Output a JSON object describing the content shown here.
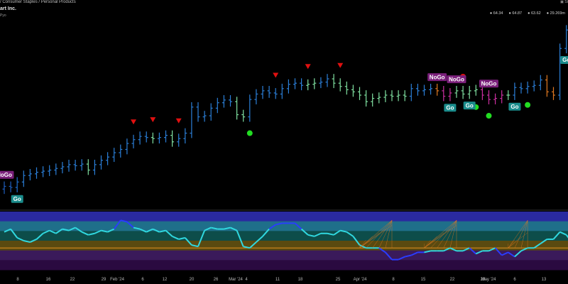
{
  "header": {
    "breadcrumb": "/ Consumer Staples / Personal Products",
    "symbol": "art Inc.",
    "timeframe": "Pyo",
    "corner": "St",
    "ohlc": [
      "64.34",
      "64.87",
      "63.62",
      "29.269m"
    ]
  },
  "chart_data": {
    "type": "bar",
    "x_tick_labels": [
      "8",
      "16",
      "22",
      "29",
      "Feb '24",
      "6",
      "12",
      "20",
      "26",
      "Mar '24",
      "4",
      "11",
      "18",
      "25",
      "Apr '24",
      "8",
      "15",
      "22",
      "29",
      "May '24",
      "6",
      "13"
    ],
    "candles": [
      {
        "c": 25.6,
        "col": "#1f5fbf"
      },
      {
        "c": 25.4,
        "col": "#1f5fbf"
      },
      {
        "c": 26.4,
        "col": "#1f6fd0"
      },
      {
        "c": 27.6,
        "col": "#2b7fd8"
      },
      {
        "c": 27.9,
        "col": "#2b7fd8"
      },
      {
        "c": 28.2,
        "col": "#2b7fd8"
      },
      {
        "c": 28.4,
        "col": "#2b7fd8"
      },
      {
        "c": 28.6,
        "col": "#2b7fd8"
      },
      {
        "c": 28.9,
        "col": "#2b7fd8"
      },
      {
        "c": 29.2,
        "col": "#2b7fd8"
      },
      {
        "c": 29.6,
        "col": "#2b7fd8"
      },
      {
        "c": 29.4,
        "col": "#2b7fd8"
      },
      {
        "c": 29.7,
        "col": "#2b7fd8"
      },
      {
        "c": 28.6,
        "col": "#7fe0a0"
      },
      {
        "c": 29.6,
        "col": "#2b7fd8"
      },
      {
        "c": 30.4,
        "col": "#2b7fd8"
      },
      {
        "c": 31.0,
        "col": "#2b7fd8"
      },
      {
        "c": 31.8,
        "col": "#2b7fd8"
      },
      {
        "c": 32.4,
        "col": "#2b7fd8"
      },
      {
        "c": 33.5,
        "col": "#2b7fd8"
      },
      {
        "c": 34.2,
        "col": "#2b7fd8"
      },
      {
        "c": 34.8,
        "col": "#2b7fd8"
      },
      {
        "c": 34.6,
        "col": "#2b7fd8"
      },
      {
        "c": 34.4,
        "col": "#7fe0a0"
      },
      {
        "c": 34.6,
        "col": "#2b7fd8"
      },
      {
        "c": 35.0,
        "col": "#2b7fd8"
      },
      {
        "c": 33.8,
        "col": "#7fe0a0"
      },
      {
        "c": 34.4,
        "col": "#2b7fd8"
      },
      {
        "c": 35.4,
        "col": "#2b7fd8"
      },
      {
        "c": 40.2,
        "col": "#2b7fd8"
      },
      {
        "c": 38.4,
        "col": "#2b7fd8"
      },
      {
        "c": 38.6,
        "col": "#2b7fd8"
      },
      {
        "c": 40.0,
        "col": "#2b7fd8"
      },
      {
        "c": 41.0,
        "col": "#2b7fd8"
      },
      {
        "c": 41.5,
        "col": "#2b7fd8"
      },
      {
        "c": 41.2,
        "col": "#2b7fd8"
      },
      {
        "c": 38.8,
        "col": "#7fe0a0"
      },
      {
        "c": 38.4,
        "col": "#7fe0a0"
      },
      {
        "c": 41.6,
        "col": "#2b7fd8"
      },
      {
        "c": 42.6,
        "col": "#2b7fd8"
      },
      {
        "c": 43.2,
        "col": "#2b7fd8"
      },
      {
        "c": 42.8,
        "col": "#2b7fd8"
      },
      {
        "c": 42.6,
        "col": "#2b7fd8"
      },
      {
        "c": 43.6,
        "col": "#2b7fd8"
      },
      {
        "c": 44.4,
        "col": "#2b7fd8"
      },
      {
        "c": 44.6,
        "col": "#2b7fd8"
      },
      {
        "c": 44.2,
        "col": "#2b7fd8"
      },
      {
        "c": 44.4,
        "col": "#7fe0a0"
      },
      {
        "c": 44.6,
        "col": "#7fe0a0"
      },
      {
        "c": 44.8,
        "col": "#2b7fd8"
      },
      {
        "c": 45.4,
        "col": "#2b7fd8"
      },
      {
        "c": 44.6,
        "col": "#7fe0a0"
      },
      {
        "c": 44.0,
        "col": "#7fe0a0"
      },
      {
        "c": 43.4,
        "col": "#7fe0a0"
      },
      {
        "c": 43.0,
        "col": "#7fe0a0"
      },
      {
        "c": 42.4,
        "col": "#7fe0a0"
      },
      {
        "c": 41.2,
        "col": "#7fe0a0"
      },
      {
        "c": 41.8,
        "col": "#7fe0a0"
      },
      {
        "c": 42.0,
        "col": "#7fe0a0"
      },
      {
        "c": 42.4,
        "col": "#7fe0a0"
      },
      {
        "c": 42.2,
        "col": "#7fe0a0"
      },
      {
        "c": 42.4,
        "col": "#7fe0a0"
      },
      {
        "c": 42.2,
        "col": "#7fe0a0"
      },
      {
        "c": 43.6,
        "col": "#2b7fd8"
      },
      {
        "c": 43.2,
        "col": "#2b7fd8"
      },
      {
        "c": 43.4,
        "col": "#2b7fd8"
      },
      {
        "c": 43.6,
        "col": "#2b7fd8"
      },
      {
        "c": 43.2,
        "col": "#e07820"
      },
      {
        "c": 42.2,
        "col": "#cc2fa0"
      },
      {
        "c": 42.8,
        "col": "#cc2fa0"
      },
      {
        "c": 43.2,
        "col": "#7fe0a0"
      },
      {
        "c": 42.6,
        "col": "#7fe0a0"
      },
      {
        "c": 43.2,
        "col": "#7fe0a0"
      },
      {
        "c": 43.4,
        "col": "#7fe0a0"
      },
      {
        "c": 42.4,
        "col": "#cc2fa0"
      },
      {
        "c": 41.6,
        "col": "#cc2fa0"
      },
      {
        "c": 41.8,
        "col": "#cc2fa0"
      },
      {
        "c": 42.4,
        "col": "#cc2fa0"
      },
      {
        "c": 42.4,
        "col": "#7fe0a0"
      },
      {
        "c": 43.8,
        "col": "#2b7fd8"
      },
      {
        "c": 43.6,
        "col": "#2b7fd8"
      },
      {
        "c": 44.0,
        "col": "#2b7fd8"
      },
      {
        "c": 44.2,
        "col": "#2b7fd8"
      },
      {
        "c": 45.2,
        "col": "#2b7fd8"
      },
      {
        "c": 43.0,
        "col": "#e07820"
      },
      {
        "c": 42.4,
        "col": "#e07820"
      },
      {
        "c": 51.0,
        "col": "#2b7fd8"
      },
      {
        "c": 54.4,
        "col": "#2b7fd8"
      }
    ],
    "labels": [
      {
        "i": 0,
        "text": "NoGo",
        "kind": "nogo",
        "pos": "above"
      },
      {
        "i": 2,
        "text": "Go",
        "kind": "go",
        "pos": "below"
      },
      {
        "i": 67,
        "text": "NoGo",
        "kind": "nogo",
        "pos": "above"
      },
      {
        "i": 69,
        "text": "Go",
        "kind": "go",
        "pos": "below"
      },
      {
        "i": 70,
        "text": "NoGo",
        "kind": "nogo",
        "pos": "above"
      },
      {
        "i": 72,
        "text": "Go",
        "kind": "go",
        "pos": "below"
      },
      {
        "i": 75,
        "text": "NoGo",
        "kind": "nogo",
        "pos": "above"
      },
      {
        "i": 79,
        "text": "Go",
        "kind": "go",
        "pos": "below"
      },
      {
        "i": 87,
        "text": "Go",
        "kind": "go",
        "pos": "below"
      }
    ],
    "markers": [
      {
        "i": 20,
        "type": "red-triangle"
      },
      {
        "i": 23,
        "type": "red-triangle"
      },
      {
        "i": 27,
        "type": "red-triangle"
      },
      {
        "i": 38,
        "type": "green-dot"
      },
      {
        "i": 42,
        "type": "red-triangle"
      },
      {
        "i": 47,
        "type": "red-triangle"
      },
      {
        "i": 52,
        "type": "red-triangle"
      },
      {
        "i": 68,
        "type": "red-dot"
      },
      {
        "i": 71,
        "type": "red-dot"
      },
      {
        "i": 73,
        "type": "green-dot"
      },
      {
        "i": 75,
        "type": "green-dot"
      },
      {
        "i": 76,
        "type": "red-dot"
      },
      {
        "i": 81,
        "type": "green-dot"
      }
    ],
    "oscillator": {
      "zones": [
        "#2a2aa0",
        "#1f6f8a",
        "#0d4d4a",
        "#5a4a10",
        "#3a1a5a",
        "#2a0a40"
      ],
      "values": [
        2.2,
        2.6,
        1.4,
        1.0,
        0.8,
        1.2,
        2.0,
        2.4,
        2.0,
        2.6,
        2.4,
        2.8,
        2.2,
        1.8,
        2.0,
        2.4,
        2.2,
        2.6,
        3.8,
        3.6,
        2.8,
        2.6,
        2.2,
        2.6,
        2.2,
        2.4,
        1.6,
        1.2,
        1.4,
        0.4,
        0.2,
        2.4,
        2.8,
        2.6,
        2.6,
        2.8,
        2.4,
        0.2,
        0.0,
        0.8,
        1.6,
        2.6,
        3.2,
        3.4,
        3.4,
        3.4,
        2.6,
        1.8,
        1.6,
        2.0,
        2.0,
        1.8,
        2.4,
        2.2,
        1.6,
        0.4,
        0.0,
        0.0,
        0.0,
        -0.6,
        -1.6,
        -1.6,
        -1.2,
        -1.0,
        -0.6,
        -0.6,
        -0.4,
        -0.4,
        -0.4,
        0.0,
        -0.4,
        -0.4,
        0.0,
        -0.8,
        -0.4,
        -0.4,
        0.0,
        -1.0,
        -0.6,
        -1.2,
        -0.4,
        0.0,
        0.0,
        0.6,
        1.2,
        1.2,
        2.2,
        1.8,
        0.6,
        2.6,
        2.8
      ]
    }
  }
}
